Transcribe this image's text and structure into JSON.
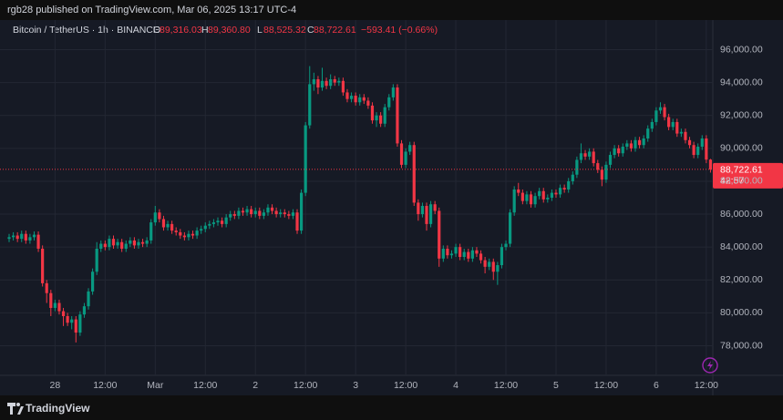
{
  "attribution": "rgb28 published on TradingView.com, Mar 06, 2025 13:17 UTC-4",
  "brand": "TradingView",
  "chart_data": {
    "type": "candlestick",
    "symbol": "Bitcoin / TetherUS · 1h · BINANCE",
    "ohlc_header": [
      {
        "label": "O",
        "value": "89,316.03"
      },
      {
        "label": "H",
        "value": "89,360.80"
      },
      {
        "label": "L",
        "value": "88,525.32"
      },
      {
        "label": "C",
        "value": "88,722.61"
      }
    ],
    "change": "−593.41 (−0.66%)",
    "last_price_label": "88,722.61",
    "countdown": "42:57",
    "up_color": "#089981",
    "down_color": "#f23645",
    "ylim": [
      76200,
      97800
    ],
    "yticks": [
      {
        "value": 78000,
        "label": "78,000.00"
      },
      {
        "value": 80000,
        "label": "80,000.00"
      },
      {
        "value": 82000,
        "label": "82,000.00"
      },
      {
        "value": 84000,
        "label": "84,000.00"
      },
      {
        "value": 86000,
        "label": "86,000.00"
      },
      {
        "value": 88000,
        "label": "88,000.00"
      },
      {
        "value": 90000,
        "label": "90,000.00"
      },
      {
        "value": 92000,
        "label": "92,000.00"
      },
      {
        "value": 94000,
        "label": "94,000.00"
      },
      {
        "value": 96000,
        "label": "96,000.00"
      }
    ],
    "xticks": [
      {
        "value": 11,
        "label": "28"
      },
      {
        "value": 23,
        "label": "12:00"
      },
      {
        "value": 35,
        "label": "Mar"
      },
      {
        "value": 47,
        "label": "12:00"
      },
      {
        "value": 59,
        "label": "2"
      },
      {
        "value": 71,
        "label": "12:00"
      },
      {
        "value": 83,
        "label": "3"
      },
      {
        "value": 95,
        "label": "12:00"
      },
      {
        "value": 107,
        "label": "4"
      },
      {
        "value": 119,
        "label": "12:00"
      },
      {
        "value": 131,
        "label": "5"
      },
      {
        "value": 143,
        "label": "12:00"
      },
      {
        "value": 155,
        "label": "6"
      },
      {
        "value": 167,
        "label": "12:00"
      }
    ],
    "grid": true,
    "open": [
      84500,
      84600,
      84700,
      84500,
      84800,
      84400,
      84600,
      84750,
      83900,
      81800,
      81200,
      80300,
      80600,
      80100,
      79800,
      79400,
      79600,
      78800,
      79900,
      80400,
      81300,
      82500,
      83900,
      84200,
      84000,
      84500,
      84100,
      84300,
      83900,
      84200,
      84400,
      84100,
      84300,
      84200,
      84400,
      85500,
      86100,
      85700,
      85200,
      85400,
      85000,
      84900,
      84700,
      84600,
      84800,
      84700,
      85000,
      85100,
      85300,
      85400,
      85500,
      85600,
      85400,
      85800,
      86000,
      85900,
      86200,
      86100,
      86300,
      86000,
      86200,
      85900,
      86100,
      86400,
      86200,
      86000,
      86100,
      86000,
      85900,
      86100,
      85000,
      87300,
      91400,
      93900,
      94200,
      93700,
      94100,
      93800,
      94200,
      94000,
      94100,
      93400,
      93000,
      93200,
      92800,
      93100,
      92900,
      92600,
      91700,
      92000,
      91500,
      92500,
      93100,
      93700,
      90300,
      89000,
      89800,
      90200,
      86700,
      86000,
      86500,
      85400,
      86600,
      86200,
      83300,
      83900,
      83500,
      83600,
      84000,
      83400,
      83700,
      83300,
      83800,
      83600,
      83200,
      82800,
      83100,
      82500,
      82900,
      84000,
      84200,
      86100,
      87500,
      87300,
      86800,
      87200,
      86600,
      87100,
      87400,
      86900,
      87000,
      87300,
      87200,
      87600,
      87500,
      88000,
      88400,
      89300,
      89700,
      89500,
      89800,
      89100,
      88700,
      88100,
      89000,
      89600,
      90000,
      89700,
      90100,
      90300,
      90000,
      90500,
      90200,
      90600,
      91200,
      91600,
      92300,
      92500,
      91900,
      91300,
      91600,
      90900,
      91000,
      90500,
      90200,
      89600,
      90100,
      90600,
      89316.03
    ],
    "high": [
      84800,
      84900,
      84900,
      85000,
      85000,
      84800,
      84950,
      84950,
      84100,
      82000,
      81400,
      80800,
      80800,
      80300,
      80000,
      79800,
      79800,
      80100,
      80600,
      81500,
      82700,
      84300,
      84400,
      84400,
      84700,
      84700,
      84500,
      84500,
      84400,
      84600,
      84600,
      84500,
      84500,
      84600,
      85700,
      86500,
      86300,
      85900,
      85600,
      85600,
      85200,
      85100,
      84900,
      85000,
      85000,
      85200,
      85300,
      85500,
      85600,
      85700,
      85800,
      85800,
      86000,
      86200,
      86200,
      86400,
      86400,
      86500,
      86500,
      86400,
      86400,
      86300,
      86600,
      86600,
      86400,
      86300,
      86300,
      86200,
      86300,
      86300,
      87500,
      91600,
      95000,
      94600,
      94400,
      94900,
      94300,
      94500,
      94400,
      94300,
      94300,
      93600,
      93400,
      93400,
      93300,
      93300,
      93100,
      92800,
      92200,
      92200,
      92700,
      93300,
      93900,
      93900,
      90500,
      90000,
      90400,
      90400,
      86900,
      86700,
      86700,
      86800,
      86800,
      86400,
      84100,
      84100,
      83800,
      84200,
      84200,
      83900,
      83900,
      84000,
      84000,
      83800,
      83400,
      83300,
      83300,
      83100,
      84200,
      84400,
      86300,
      87700,
      87900,
      87500,
      87400,
      87400,
      87300,
      87600,
      87600,
      87200,
      87500,
      87500,
      87800,
      87800,
      88200,
      88600,
      89500,
      90300,
      89900,
      90000,
      90000,
      89300,
      88900,
      89200,
      89800,
      90200,
      90200,
      90300,
      90500,
      90500,
      90700,
      90700,
      90800,
      91400,
      91800,
      92500,
      92800,
      92700,
      92100,
      91800,
      91800,
      91200,
      91200,
      90700,
      90400,
      90300,
      90800,
      90800,
      89360.8
    ],
    "low": [
      84300,
      84400,
      84300,
      84300,
      84200,
      84200,
      84400,
      83700,
      81600,
      80600,
      79800,
      80100,
      79900,
      79200,
      79200,
      79000,
      78200,
      78600,
      79700,
      80200,
      81100,
      82300,
      83700,
      83800,
      83800,
      83900,
      83900,
      83700,
      83700,
      84000,
      83900,
      83900,
      84000,
      84000,
      84200,
      85300,
      85500,
      85000,
      85000,
      84800,
      84700,
      84500,
      84400,
      84400,
      84500,
      84500,
      84800,
      84900,
      85100,
      85200,
      85300,
      85200,
      85200,
      85600,
      85700,
      85700,
      85900,
      85900,
      85800,
      85800,
      85700,
      85700,
      85900,
      86000,
      85800,
      85800,
      85800,
      85700,
      85700,
      84800,
      84800,
      87100,
      91200,
      93500,
      93300,
      93500,
      93600,
      93600,
      93800,
      93800,
      93200,
      92800,
      92800,
      92600,
      92600,
      92700,
      92400,
      91500,
      91300,
      91300,
      91300,
      92300,
      92900,
      90100,
      88800,
      88800,
      89600,
      86500,
      85600,
      85800,
      85000,
      85200,
      86000,
      82800,
      83100,
      83300,
      83300,
      83400,
      83200,
      83200,
      83100,
      83100,
      83400,
      83000,
      82400,
      82600,
      82000,
      81700,
      82700,
      83800,
      84000,
      85900,
      87100,
      86600,
      86600,
      86400,
      86400,
      86900,
      86700,
      86700,
      86800,
      87000,
      87000,
      87300,
      87300,
      87800,
      88200,
      89100,
      89300,
      89300,
      88900,
      88500,
      87700,
      87900,
      88800,
      89400,
      89500,
      89500,
      89900,
      89800,
      89800,
      90000,
      90000,
      90400,
      91000,
      91400,
      92100,
      91700,
      91100,
      91100,
      90700,
      90700,
      90300,
      90000,
      89400,
      89400,
      89900,
      89100,
      88525.32
    ],
    "close": [
      84600,
      84700,
      84500,
      84800,
      84400,
      84600,
      84750,
      83900,
      81800,
      81200,
      80300,
      80600,
      80100,
      79800,
      79400,
      79600,
      78800,
      79900,
      80400,
      81300,
      82500,
      83900,
      84200,
      84000,
      84500,
      84100,
      84300,
      83900,
      84200,
      84400,
      84100,
      84300,
      84200,
      84400,
      85500,
      86100,
      85700,
      85200,
      85400,
      85000,
      84900,
      84700,
      84600,
      84800,
      84700,
      85000,
      85100,
      85300,
      85400,
      85500,
      85600,
      85400,
      85800,
      86000,
      85900,
      86200,
      86100,
      86300,
      86000,
      86200,
      85900,
      86100,
      86400,
      86200,
      86000,
      86100,
      86000,
      85900,
      86100,
      85000,
      87300,
      91400,
      93900,
      94200,
      93700,
      94100,
      93800,
      94200,
      94000,
      94100,
      93400,
      93000,
      93200,
      92800,
      93100,
      92900,
      92600,
      91700,
      92000,
      91500,
      92500,
      93100,
      93700,
      90300,
      89000,
      89800,
      90200,
      86700,
      86000,
      86500,
      85400,
      86600,
      86200,
      83300,
      83900,
      83500,
      83600,
      84000,
      83400,
      83700,
      83300,
      83800,
      83600,
      83200,
      82800,
      83100,
      82500,
      82900,
      84000,
      84200,
      86100,
      87500,
      87300,
      86800,
      87200,
      86600,
      87100,
      87400,
      86900,
      87000,
      87300,
      87200,
      87600,
      87500,
      88000,
      88400,
      89300,
      89700,
      89500,
      89800,
      89100,
      88700,
      88100,
      89000,
      89600,
      90000,
      89700,
      90100,
      90300,
      90000,
      90500,
      90200,
      90600,
      91200,
      91600,
      92300,
      92500,
      91900,
      91300,
      91600,
      90900,
      91000,
      90500,
      90200,
      89600,
      90100,
      90600,
      89316.03,
      88722.61
    ]
  }
}
